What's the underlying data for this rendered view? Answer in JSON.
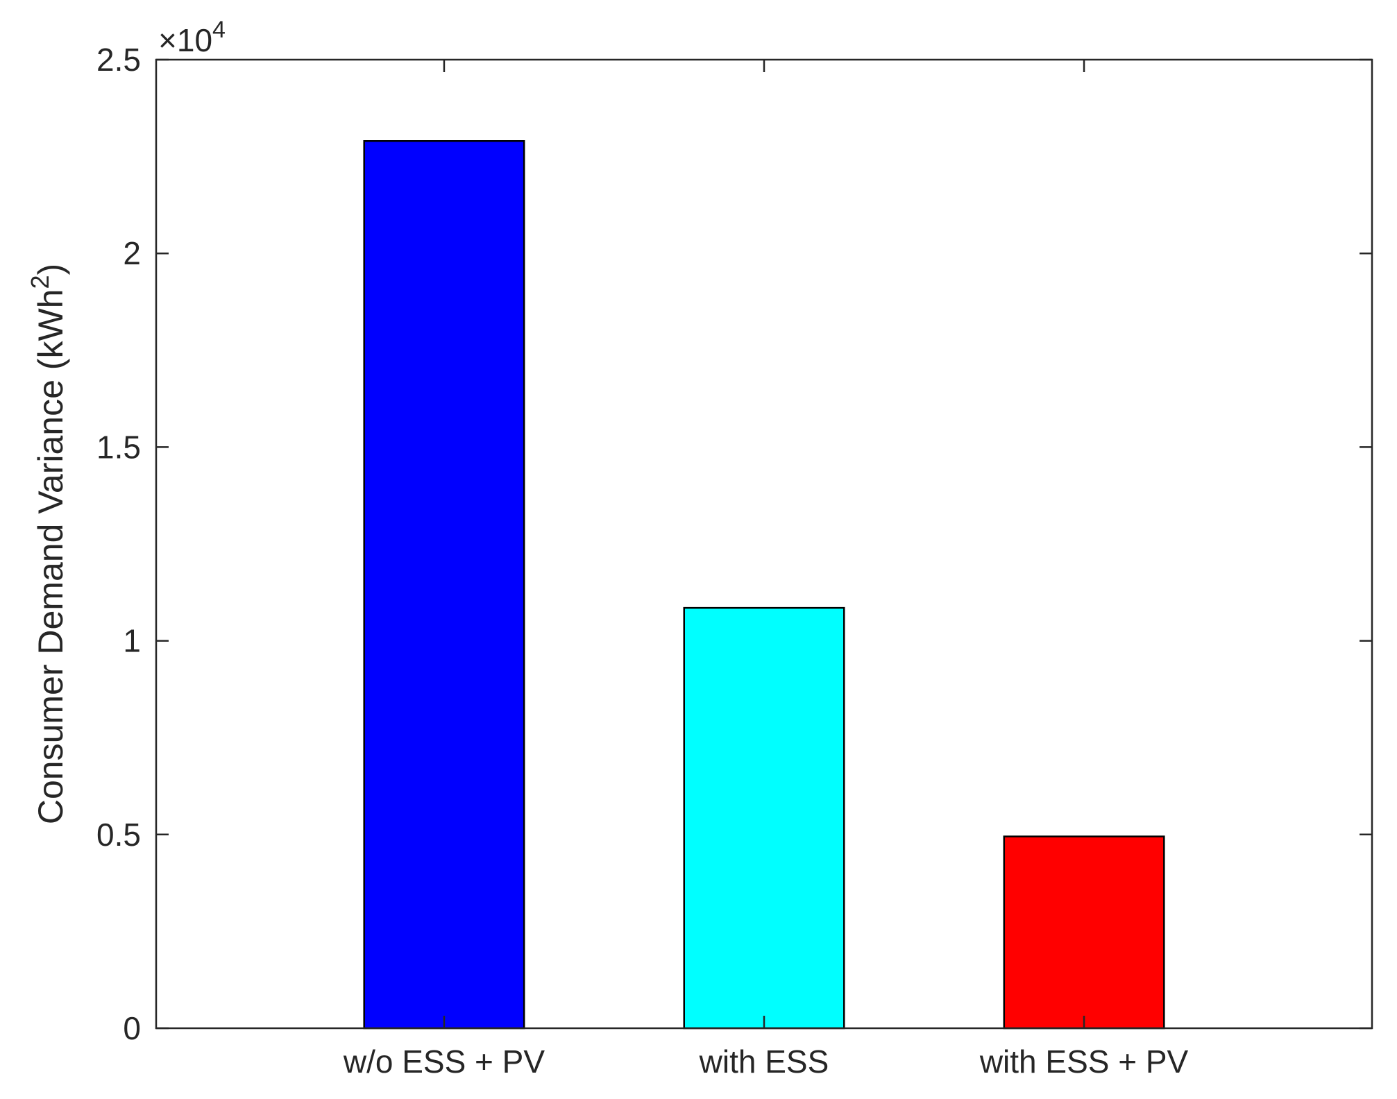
{
  "chart_data": {
    "type": "bar",
    "categories": [
      "w/o ESS + PV",
      "with ESS",
      "with ESS + PV"
    ],
    "values": [
      22900,
      10850,
      4950
    ],
    "bar_colors": [
      "#0000ff",
      "#00ffff",
      "#ff0000"
    ],
    "ylabel_main": "Consumer Demand Variance (kWh",
    "ylabel_sup": "2",
    "ylabel_end": ")",
    "ylim": [
      0,
      25000
    ],
    "yticks": [
      0,
      5000,
      10000,
      15000,
      20000,
      25000
    ],
    "ytick_labels": [
      "0",
      "0.5",
      "1",
      "1.5",
      "2",
      "2.5"
    ],
    "exponent_prefix": "×10",
    "exponent_power": "4",
    "grid": false,
    "box": true
  }
}
